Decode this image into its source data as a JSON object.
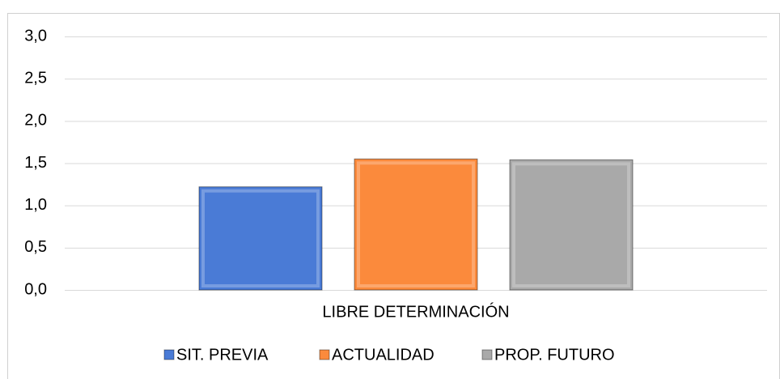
{
  "chart_data": {
    "type": "bar",
    "categories": [
      "LIBRE DETERMINACIÓN"
    ],
    "series": [
      {
        "name": "SIT. PREVIA",
        "color": "#4a7bd6",
        "values": [
          1.22
        ]
      },
      {
        "name": "ACTUALIDAD",
        "color": "#fb8a3c",
        "values": [
          1.55
        ]
      },
      {
        "name": "PROP. FUTURO",
        "color": "#a9a9a9",
        "values": [
          1.54
        ]
      }
    ],
    "ylim": [
      0,
      3
    ],
    "yticks": [
      {
        "value": 0,
        "label": "0,0"
      },
      {
        "value": 0.5,
        "label": "0,5"
      },
      {
        "value": 1,
        "label": "1,0"
      },
      {
        "value": 1.5,
        "label": "1,5"
      },
      {
        "value": 2,
        "label": "2,0"
      },
      {
        "value": 2.5,
        "label": "2,5"
      },
      {
        "value": 3,
        "label": "3,0"
      }
    ],
    "grid": true,
    "legend": "bottom"
  }
}
